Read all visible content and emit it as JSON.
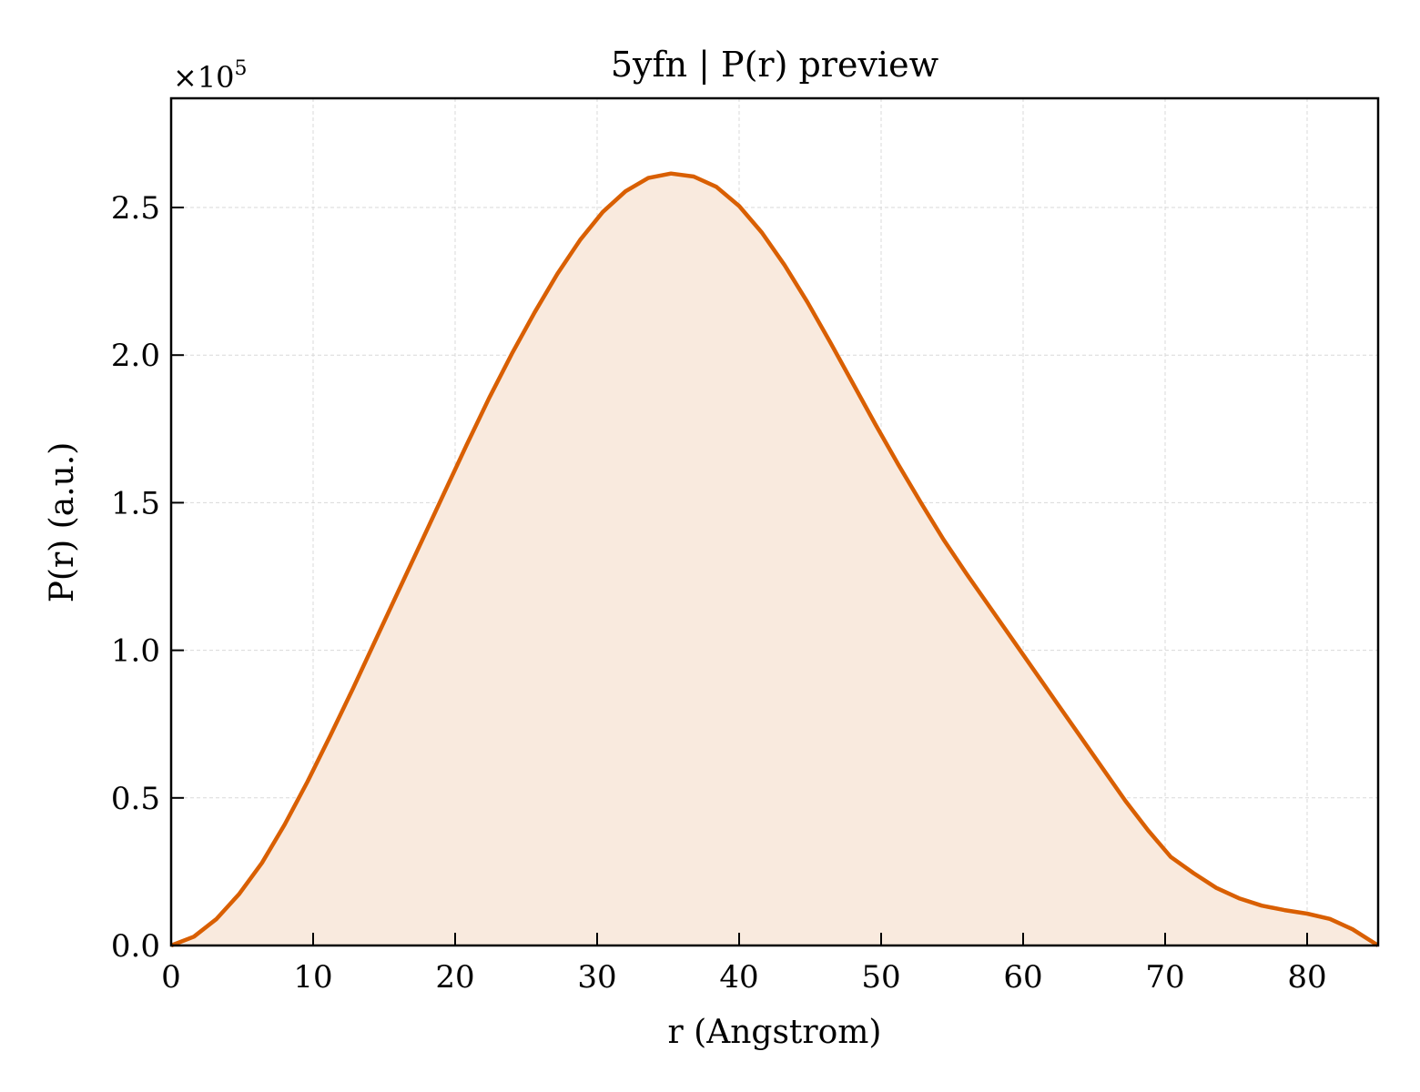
{
  "chart_data": {
    "type": "area",
    "title": "5yfn | P(r) preview",
    "xlabel": "r (Angstrom)",
    "ylabel": "P(r) (a.u.)",
    "y_multiplier_label": "×10",
    "y_multiplier_exponent": "5",
    "xlim": [
      0,
      85
    ],
    "ylim": [
      0,
      2.87
    ],
    "x_ticks": [
      0,
      10,
      20,
      30,
      40,
      50,
      60,
      70,
      80
    ],
    "x_tick_labels": [
      "0",
      "10",
      "20",
      "30",
      "40",
      "50",
      "60",
      "70",
      "80"
    ],
    "y_ticks": [
      0,
      0.5,
      1.0,
      1.5,
      2.0,
      2.5
    ],
    "y_tick_labels": [
      "0.0",
      "0.5",
      "1.0",
      "1.5",
      "2.0",
      "2.5"
    ],
    "grid": true,
    "colors": {
      "line": "#d95f02",
      "fill": "#f9eade",
      "grid": "#d9d9d9"
    },
    "series": [
      {
        "x": [
          0,
          1.6,
          3.2,
          4.8,
          6.4,
          8.0,
          9.6,
          11.2,
          12.8,
          14.4,
          16.0,
          17.6,
          19.2,
          20.8,
          22.4,
          24.0,
          25.6,
          27.2,
          28.8,
          30.4,
          32.0,
          33.6,
          35.2,
          36.8,
          38.4,
          40.0,
          41.6,
          43.2,
          44.8,
          46.4,
          48.0,
          49.6,
          51.2,
          52.8,
          54.4,
          56.0,
          57.6,
          59.2,
          60.8,
          62.4,
          64.0,
          65.6,
          67.2,
          68.8,
          70.4,
          72.0,
          73.6,
          75.2,
          76.8,
          78.4,
          80.0,
          81.6,
          83.2,
          85.0
        ],
        "y": [
          0.0,
          0.03,
          0.09,
          0.175,
          0.28,
          0.41,
          0.555,
          0.71,
          0.87,
          1.035,
          1.2,
          1.365,
          1.53,
          1.695,
          1.855,
          2.005,
          2.145,
          2.275,
          2.39,
          2.485,
          2.555,
          2.6,
          2.615,
          2.605,
          2.57,
          2.505,
          2.415,
          2.305,
          2.18,
          2.045,
          1.905,
          1.765,
          1.63,
          1.5,
          1.375,
          1.26,
          1.15,
          1.04,
          0.93,
          0.82,
          0.71,
          0.6,
          0.49,
          0.39,
          0.3,
          0.245,
          0.195,
          0.16,
          0.135,
          0.12,
          0.108,
          0.09,
          0.055,
          0.0
        ]
      }
    ]
  }
}
